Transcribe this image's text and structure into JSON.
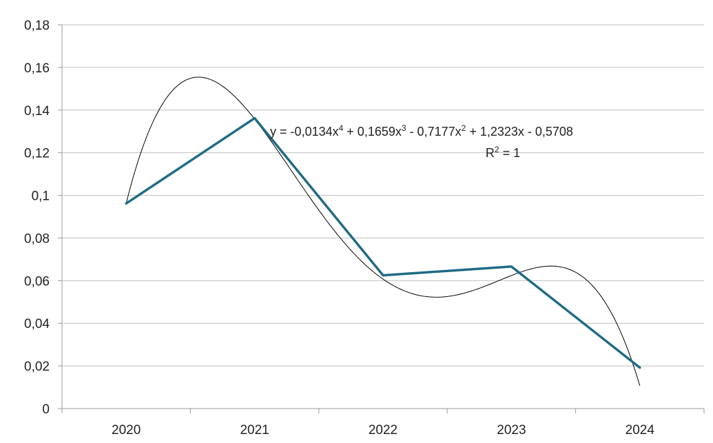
{
  "chart_data": {
    "type": "line",
    "categories": [
      "2020",
      "2021",
      "2022",
      "2023",
      "2024"
    ],
    "series": [
      {
        "values": [
          0.0962,
          0.1362,
          0.0625,
          0.0666,
          0.0192
        ],
        "color": "#1f6b85"
      }
    ],
    "trendline": {
      "type": "polynomial",
      "order": 4,
      "coefficients": [
        -0.0134,
        0.1659,
        -0.7177,
        1.2323,
        -0.5708
      ],
      "color": "#000000"
    },
    "y_ticks": [
      "0",
      "0,02",
      "0,04",
      "0,06",
      "0,08",
      "0,1",
      "0,12",
      "0,14",
      "0,16",
      "0,18"
    ],
    "ylim": [
      0,
      0.18
    ],
    "grid": true,
    "title": "",
    "xlabel": "",
    "ylabel": ""
  },
  "equation": {
    "line1_parts": [
      "y = -0,0134x",
      "4",
      " + 0,1659x",
      "3",
      " - 0,7177x",
      "2",
      " + 1,2323x - 0,5708"
    ],
    "line2_parts": [
      "R",
      "2",
      " = 1"
    ]
  }
}
